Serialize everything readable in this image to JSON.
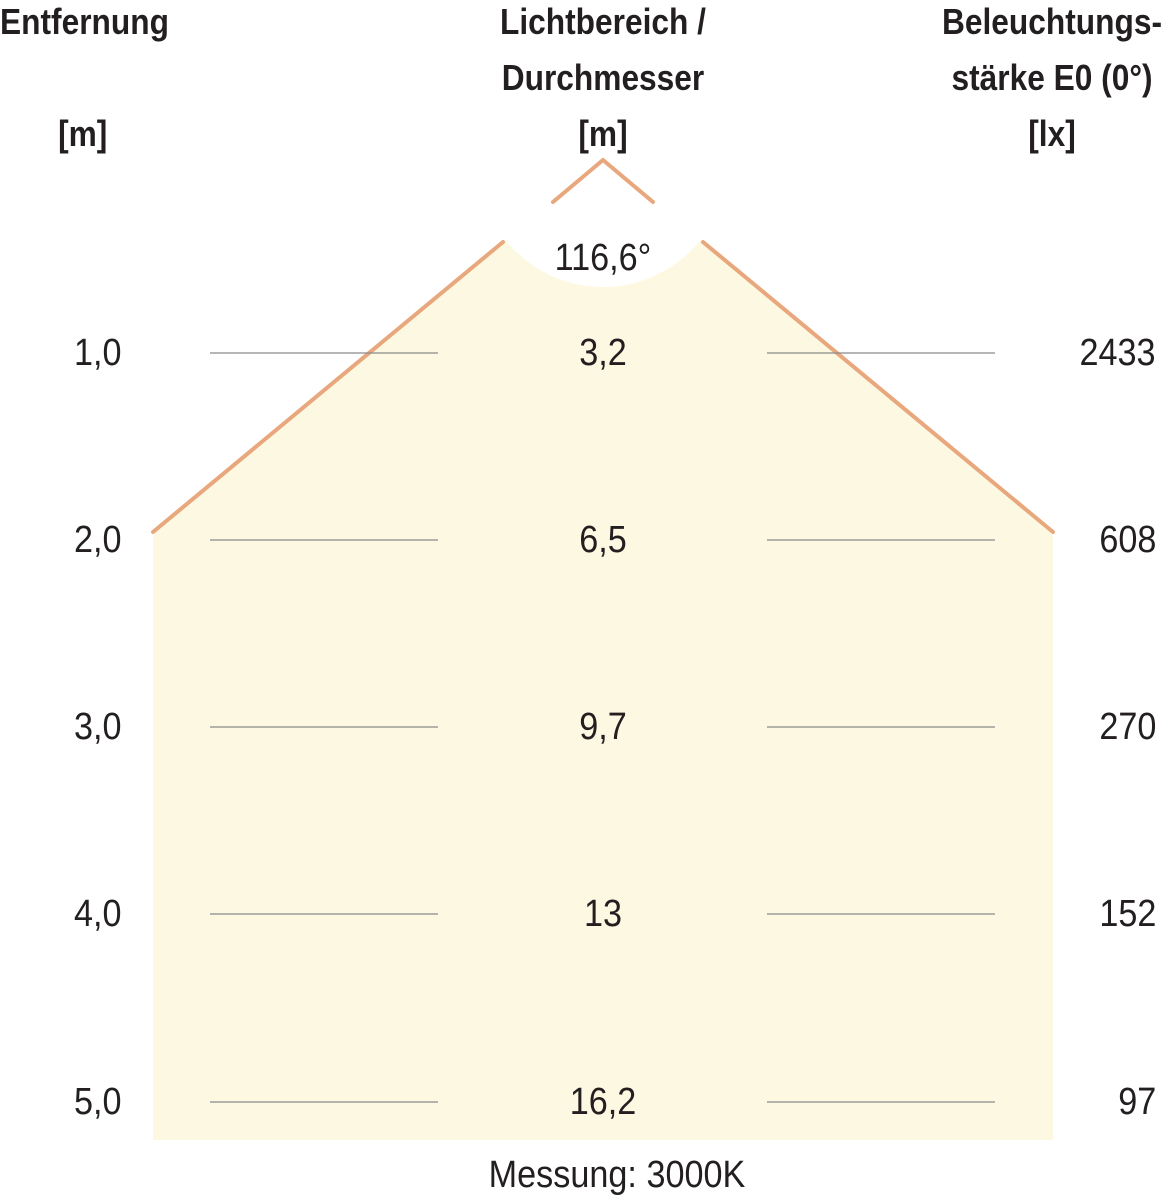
{
  "headers": {
    "distance": {
      "title": "Entfernung",
      "unit": "[m]"
    },
    "diameter": {
      "title_line1": "Lichtbereich /",
      "title_line2": "Durchmesser",
      "unit": "[m]"
    },
    "illuminance": {
      "title_line1": "Beleuchtungs-",
      "title_line2": "stärke E0 (0°)",
      "unit": "[lx]"
    }
  },
  "beam_angle": "116,6°",
  "rows": [
    {
      "distance": "1,0",
      "diameter": "3,2",
      "illuminance": "2433"
    },
    {
      "distance": "2,0",
      "diameter": "6,5",
      "illuminance": "608"
    },
    {
      "distance": "3,0",
      "diameter": "9,7",
      "illuminance": "270"
    },
    {
      "distance": "4,0",
      "diameter": "13",
      "illuminance": "152"
    },
    {
      "distance": "5,0",
      "diameter": "16,2",
      "illuminance": "97"
    }
  ],
  "footer": "Messung: 3000K",
  "colors": {
    "beam_fill": "#fdf8e1",
    "beam_edge": "#e8a77c",
    "guide_line": "#8a8a8a",
    "text": "#231f20"
  }
}
